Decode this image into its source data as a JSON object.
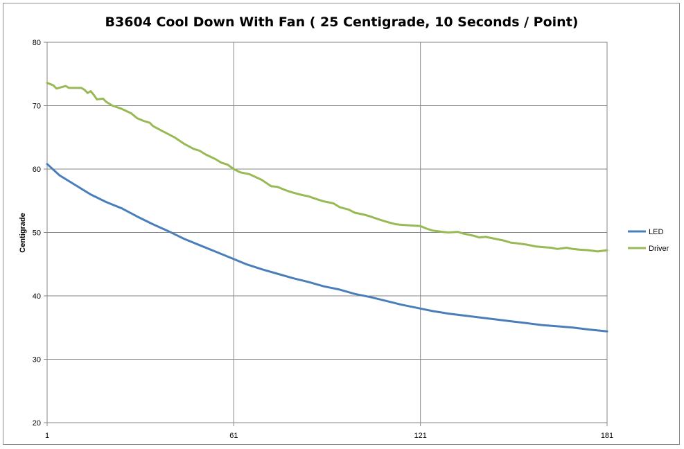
{
  "chart_data": {
    "type": "line",
    "title": "B3604 Cool Down With Fan ( 25 Centigrade, 10 Seconds / Point)",
    "xlabel": "",
    "ylabel": "Centigrade",
    "xlim": [
      1,
      181
    ],
    "ylim": [
      20,
      80
    ],
    "x_ticks": [
      1,
      61,
      121,
      181
    ],
    "y_ticks": [
      20,
      30,
      40,
      50,
      60,
      70,
      80
    ],
    "grid": true,
    "legend_position": "right",
    "series": [
      {
        "name": "LED",
        "color": "#4a7ebb",
        "points": [
          [
            1,
            60.8
          ],
          [
            5,
            59
          ],
          [
            10,
            57.5
          ],
          [
            15,
            56
          ],
          [
            20,
            54.8
          ],
          [
            25,
            53.8
          ],
          [
            30,
            52.5
          ],
          [
            35,
            51.3
          ],
          [
            40,
            50.2
          ],
          [
            45,
            49
          ],
          [
            50,
            48
          ],
          [
            55,
            47
          ],
          [
            61,
            45.8
          ],
          [
            65,
            45
          ],
          [
            70,
            44.2
          ],
          [
            75,
            43.5
          ],
          [
            80,
            42.8
          ],
          [
            85,
            42.2
          ],
          [
            90,
            41.5
          ],
          [
            95,
            41
          ],
          [
            100,
            40.3
          ],
          [
            105,
            39.8
          ],
          [
            110,
            39.2
          ],
          [
            115,
            38.6
          ],
          [
            121,
            38
          ],
          [
            125,
            37.6
          ],
          [
            130,
            37.2
          ],
          [
            135,
            36.9
          ],
          [
            140,
            36.6
          ],
          [
            145,
            36.3
          ],
          [
            150,
            36
          ],
          [
            155,
            35.7
          ],
          [
            160,
            35.4
          ],
          [
            165,
            35.2
          ],
          [
            170,
            35
          ],
          [
            175,
            34.7
          ],
          [
            181,
            34.4
          ]
        ]
      },
      {
        "name": "Driver",
        "color": "#98b954",
        "points": [
          [
            1,
            73.6
          ],
          [
            3,
            73.2
          ],
          [
            4,
            72.7
          ],
          [
            7,
            73.1
          ],
          [
            8,
            72.8
          ],
          [
            12,
            72.8
          ],
          [
            13,
            72.5
          ],
          [
            14,
            72
          ],
          [
            15,
            72.3
          ],
          [
            16,
            71.7
          ],
          [
            17,
            71
          ],
          [
            19,
            71.1
          ],
          [
            20,
            70.6
          ],
          [
            22,
            70
          ],
          [
            25,
            69.5
          ],
          [
            28,
            68.8
          ],
          [
            30,
            68
          ],
          [
            32,
            67.6
          ],
          [
            34,
            67.3
          ],
          [
            35,
            66.8
          ],
          [
            38,
            66
          ],
          [
            40,
            65.5
          ],
          [
            42,
            65
          ],
          [
            45,
            64
          ],
          [
            48,
            63.2
          ],
          [
            50,
            62.9
          ],
          [
            52,
            62.3
          ],
          [
            55,
            61.6
          ],
          [
            57,
            61
          ],
          [
            59,
            60.7
          ],
          [
            61,
            60
          ],
          [
            63,
            59.5
          ],
          [
            66,
            59.2
          ],
          [
            70,
            58.3
          ],
          [
            73,
            57.3
          ],
          [
            75,
            57.2
          ],
          [
            78,
            56.6
          ],
          [
            80,
            56.3
          ],
          [
            83,
            55.9
          ],
          [
            85,
            55.7
          ],
          [
            88,
            55.2
          ],
          [
            90,
            54.9
          ],
          [
            93,
            54.6
          ],
          [
            95,
            54
          ],
          [
            98,
            53.6
          ],
          [
            100,
            53.1
          ],
          [
            103,
            52.8
          ],
          [
            105,
            52.5
          ],
          [
            108,
            52
          ],
          [
            110,
            51.7
          ],
          [
            113,
            51.3
          ],
          [
            115,
            51.2
          ],
          [
            118,
            51.1
          ],
          [
            121,
            51
          ],
          [
            123,
            50.6
          ],
          [
            125,
            50.3
          ],
          [
            128,
            50.1
          ],
          [
            130,
            50
          ],
          [
            133,
            50.1
          ],
          [
            135,
            49.8
          ],
          [
            138,
            49.5
          ],
          [
            140,
            49.2
          ],
          [
            142,
            49.3
          ],
          [
            145,
            49
          ],
          [
            148,
            48.7
          ],
          [
            150,
            48.4
          ],
          [
            152,
            48.3
          ],
          [
            155,
            48.1
          ],
          [
            158,
            47.8
          ],
          [
            160,
            47.7
          ],
          [
            163,
            47.6
          ],
          [
            165,
            47.4
          ],
          [
            168,
            47.6
          ],
          [
            170,
            47.4
          ],
          [
            172,
            47.3
          ],
          [
            175,
            47.2
          ],
          [
            178,
            47
          ],
          [
            181,
            47.2
          ]
        ]
      }
    ]
  }
}
